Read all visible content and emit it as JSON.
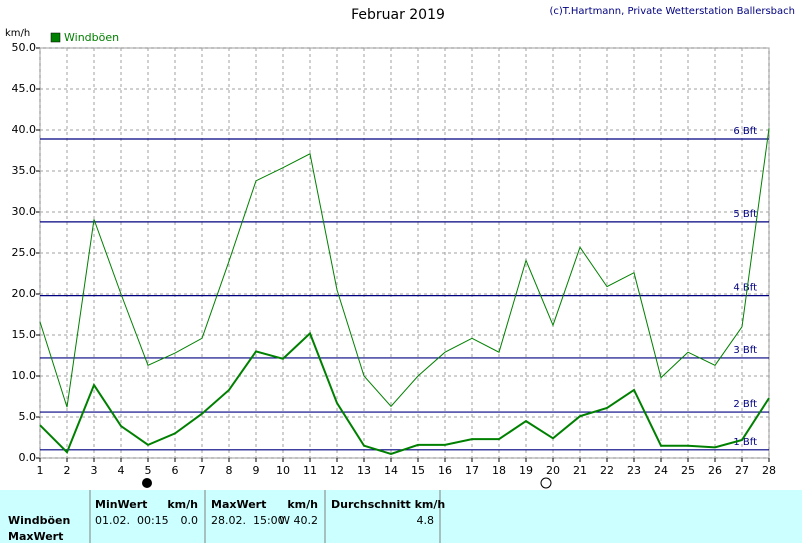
{
  "chart_data": {
    "type": "line",
    "title": "Februar 2019",
    "source": "(c)T.Hartmann, Private Wetterstation Ballersbach",
    "y_unit": "km/h",
    "x": [
      1,
      2,
      3,
      4,
      5,
      6,
      7,
      8,
      9,
      10,
      11,
      12,
      13,
      14,
      15,
      16,
      17,
      18,
      19,
      20,
      21,
      22,
      23,
      24,
      25,
      26,
      27,
      28
    ],
    "xlim": [
      1,
      28
    ],
    "xticks": [
      1,
      2,
      3,
      4,
      5,
      6,
      7,
      8,
      9,
      10,
      11,
      12,
      13,
      14,
      15,
      16,
      17,
      18,
      19,
      20,
      21,
      22,
      23,
      24,
      25,
      26,
      27,
      28
    ],
    "ylim": [
      0,
      50
    ],
    "yticks": [
      {
        "value": 0,
        "label": "0.0"
      },
      {
        "value": 5,
        "label": "5.0"
      },
      {
        "value": 10,
        "label": "10.0"
      },
      {
        "value": 15,
        "label": "15.0"
      },
      {
        "value": 20,
        "label": "20.0"
      },
      {
        "value": 25,
        "label": "25.0"
      },
      {
        "value": 30,
        "label": "30.0"
      },
      {
        "value": 35,
        "label": "35.0"
      },
      {
        "value": 40,
        "label": "40.0"
      },
      {
        "value": 45,
        "label": "45.0"
      },
      {
        "value": 50,
        "label": "50.0"
      }
    ],
    "grid": true,
    "series": [
      {
        "name": "Windböen",
        "color": "#008000",
        "line_width": 2,
        "values": [
          4.0,
          0.7,
          8.9,
          3.9,
          1.6,
          3.0,
          5.4,
          8.3,
          13.0,
          12.1,
          15.2,
          6.7,
          1.5,
          0.5,
          1.6,
          1.6,
          2.3,
          2.3,
          4.5,
          2.4,
          5.1,
          6.1,
          8.3,
          1.5,
          1.5,
          1.3,
          2.2,
          7.3
        ]
      },
      {
        "color": "#008000",
        "line_width": 1,
        "values": [
          16.6,
          6.2,
          29.1,
          20.0,
          11.3,
          12.8,
          14.6,
          24.0,
          33.8,
          35.4,
          37.1,
          20.5,
          10.0,
          6.3,
          10.0,
          12.9,
          14.6,
          12.9,
          24.1,
          16.2,
          25.7,
          20.9,
          22.6,
          9.8,
          12.9,
          11.3,
          16.0,
          40.2
        ]
      }
    ],
    "reference_lines": {
      "color": "#000080",
      "lines": [
        {
          "value": 1.0,
          "label": "1 Bft"
        },
        {
          "value": 5.6,
          "label": "2 Bft"
        },
        {
          "value": 12.2,
          "label": "3 Bft"
        },
        {
          "value": 19.8,
          "label": "4 Bft"
        },
        {
          "value": 28.8,
          "label": "5 Bft"
        },
        {
          "value": 38.9,
          "label": "6 Bft"
        }
      ]
    }
  },
  "table": {
    "columns": [
      "MinWert",
      "km/h",
      "MaxWert",
      "km/h",
      "Durchschnitt km/h"
    ],
    "rows": [
      {
        "label": "Windböen",
        "cells": [
          "01.02.  00:15",
          "0.0",
          "28.02.  15:00",
          "W 40.2",
          "4.8"
        ]
      },
      {
        "label": "MaxWert"
      }
    ]
  }
}
